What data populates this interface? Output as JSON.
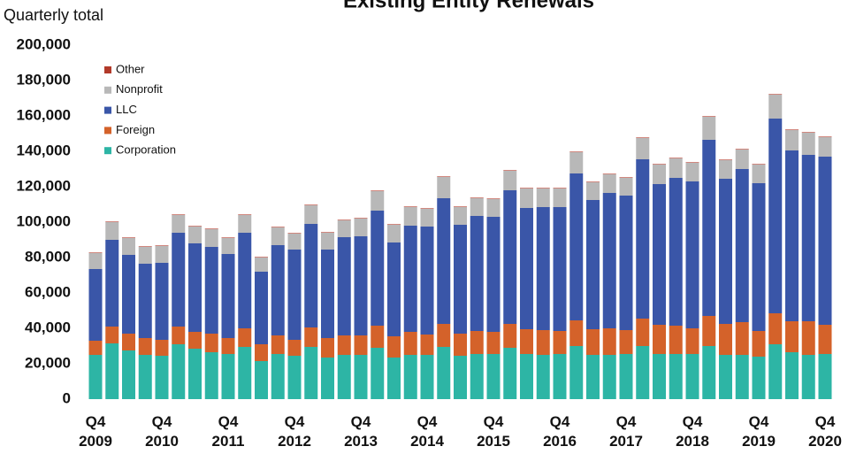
{
  "chart_data": {
    "type": "stacked-bar",
    "title": "Existing Entity Renewals",
    "y_label": "Quarterly total",
    "categories": [
      "Q4 2009",
      null,
      null,
      null,
      "Q4 2010",
      null,
      null,
      null,
      "Q4 2011",
      null,
      null,
      null,
      "Q4 2012",
      null,
      null,
      null,
      "Q4 2013",
      null,
      null,
      null,
      "Q4 2014",
      null,
      null,
      null,
      "Q4 2015",
      null,
      null,
      null,
      "Q4 2016",
      null,
      null,
      null,
      "Q4 2017",
      null,
      null,
      null,
      "Q4 2018",
      null,
      null,
      null,
      "Q4 2019",
      null,
      null,
      null,
      "Q4 2020"
    ],
    "series": [
      {
        "name": "Corporation",
        "color": "#2db5a5",
        "values": [
          25000,
          31500,
          27500,
          25000,
          24500,
          31000,
          28500,
          26500,
          25500,
          29500,
          21500,
          25500,
          24500,
          29500,
          23500,
          25000,
          25000,
          29000,
          23500,
          25000,
          25000,
          29500,
          24500,
          25500,
          25500,
          29000,
          25500,
          25000,
          25500,
          30000,
          25000,
          25000,
          25500,
          30000,
          25500,
          25500,
          25500,
          30000,
          25000,
          25000,
          24000,
          31000,
          26500,
          25000,
          25500
        ]
      },
      {
        "name": "Foreign",
        "color": "#d4622a",
        "values": [
          8000,
          9500,
          9500,
          9500,
          9000,
          10000,
          9500,
          10500,
          9000,
          10500,
          9500,
          10500,
          9000,
          11000,
          11000,
          11000,
          11000,
          12500,
          12000,
          13000,
          11500,
          13000,
          12500,
          13000,
          12500,
          13500,
          14000,
          14000,
          13000,
          14500,
          14500,
          15000,
          13500,
          15500,
          16500,
          16000,
          14500,
          17000,
          17500,
          18500,
          14500,
          17500,
          17500,
          19000,
          16500
        ]
      },
      {
        "name": "LLC",
        "color": "#3a56a8",
        "values": [
          40500,
          49000,
          44500,
          42000,
          43500,
          53000,
          50000,
          49000,
          47500,
          54000,
          41000,
          51000,
          51000,
          58500,
          50000,
          55500,
          56000,
          65000,
          53000,
          60000,
          61000,
          71000,
          61500,
          65000,
          65000,
          75500,
          68500,
          69500,
          70000,
          83000,
          73000,
          76500,
          76000,
          90000,
          79500,
          83500,
          83000,
          99500,
          82000,
          86500,
          83500,
          110000,
          96500,
          94000,
          95000
        ]
      },
      {
        "name": "Nonprofit",
        "color": "#b8b8b8",
        "values": [
          9000,
          10000,
          9500,
          9500,
          9500,
          10000,
          9500,
          10000,
          9000,
          10000,
          8000,
          10000,
          9000,
          10500,
          9500,
          9500,
          10000,
          11000,
          10000,
          10500,
          10000,
          12000,
          10000,
          10000,
          10000,
          11000,
          11000,
          10500,
          10500,
          12000,
          10000,
          10500,
          10000,
          12000,
          11000,
          11000,
          10500,
          13000,
          10500,
          11000,
          10500,
          13500,
          11500,
          12500,
          11000
        ]
      },
      {
        "name": "Other",
        "color": "#b23a2a",
        "values": [
          300,
          300,
          300,
          300,
          300,
          300,
          300,
          300,
          300,
          300,
          300,
          300,
          300,
          300,
          300,
          300,
          300,
          300,
          300,
          300,
          300,
          300,
          300,
          300,
          300,
          300,
          300,
          300,
          300,
          300,
          300,
          300,
          300,
          300,
          300,
          300,
          300,
          300,
          300,
          300,
          300,
          300,
          300,
          300,
          300
        ]
      }
    ],
    "ylim": [
      0,
      200000
    ],
    "yticks": [
      0,
      {
        "value": 20000,
        "label": "20,000"
      },
      {
        "value": 40000,
        "label": "40,000"
      },
      {
        "value": 60000,
        "label": "60,000"
      },
      {
        "value": 80000,
        "label": "80,000"
      },
      {
        "value": 100000,
        "label": "100,000"
      },
      {
        "value": 120000,
        "label": "120,000"
      },
      {
        "value": 140000,
        "label": "140,000"
      },
      {
        "value": 160000,
        "label": "160,000"
      },
      {
        "value": 180000,
        "label": "180,000"
      },
      {
        "value": 200000,
        "label": "200,000"
      }
    ],
    "legend": "top-left",
    "grid": false
  }
}
